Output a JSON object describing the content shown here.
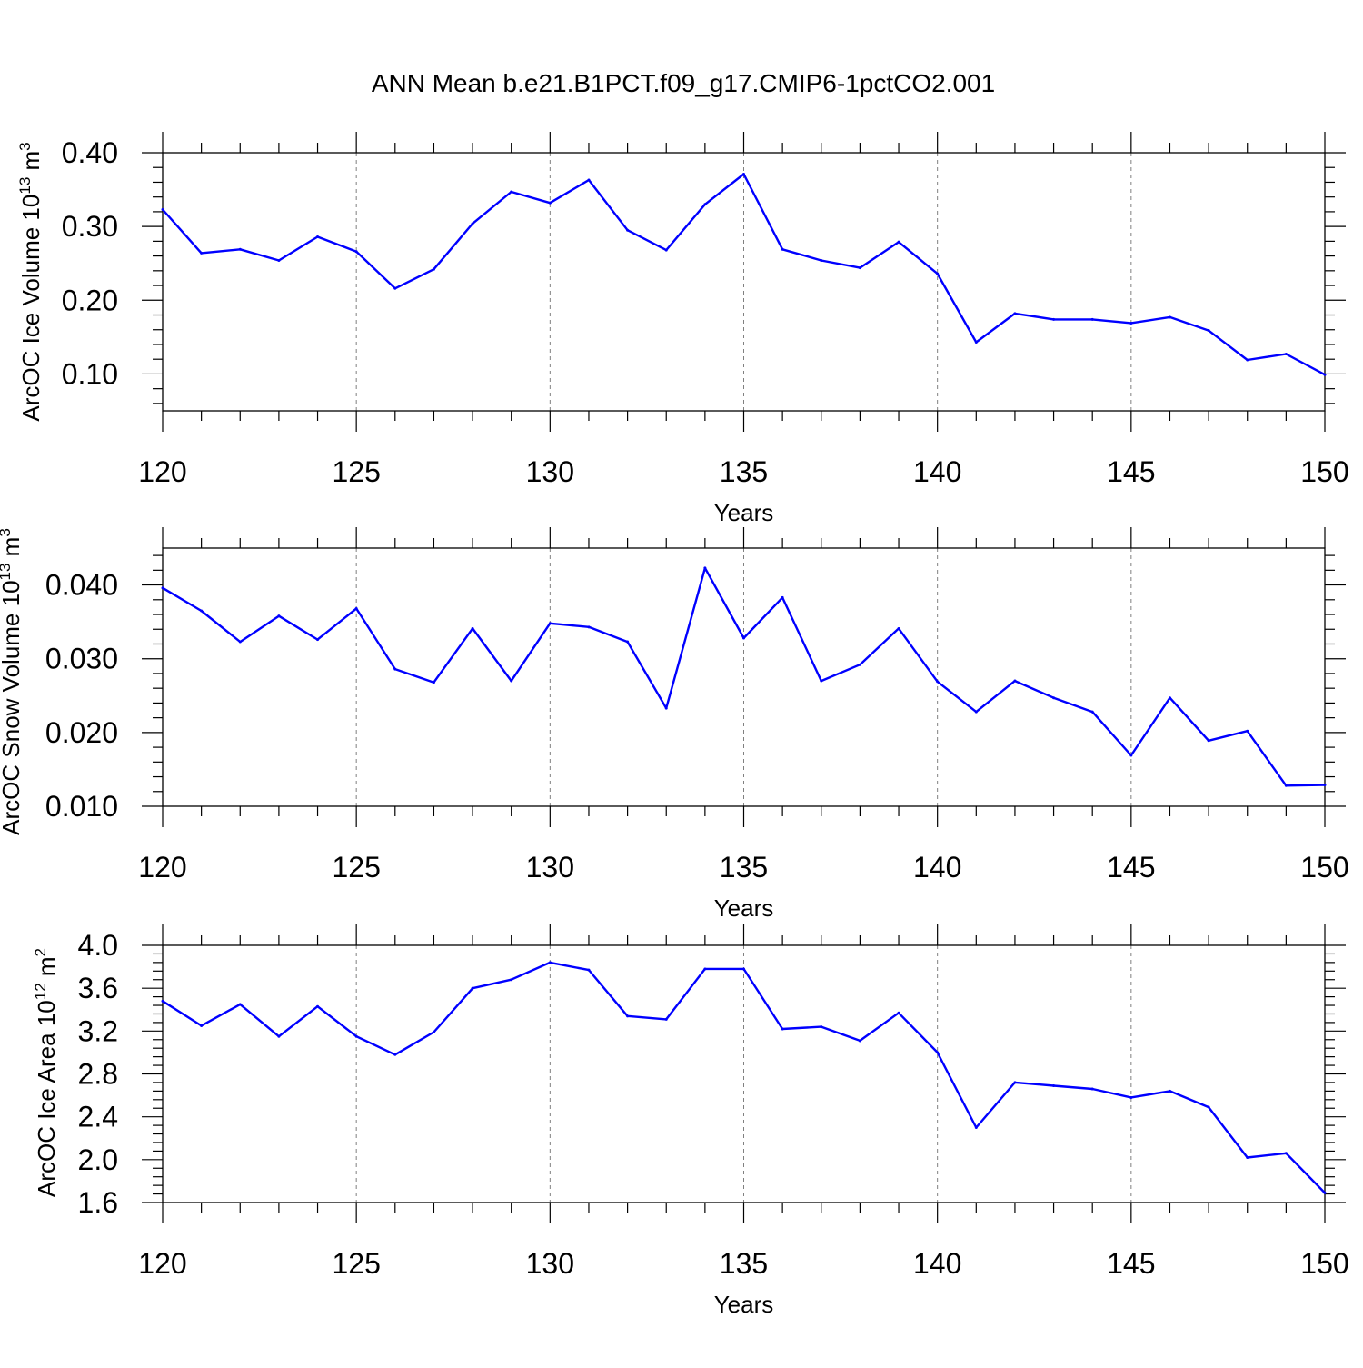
{
  "title": "ANN Mean b.e21.B1PCT.f09_g17.CMIP6-1pctCO2.001",
  "colors": {
    "line": "#0000ff",
    "axis": "#000000",
    "grid": "#808080"
  },
  "chart_data": [
    {
      "type": "line",
      "ylabel_main": "ArcOC Ice Volume 10",
      "ylabel_exp": "13",
      "ylabel_unit": " m",
      "ylabel_unit_exp": "3",
      "xlabel": "Years",
      "xlim": [
        120,
        150
      ],
      "ylim": [
        0.05,
        0.4
      ],
      "xticks": [
        120,
        125,
        130,
        135,
        140,
        145,
        150
      ],
      "xtick_labels": [
        "120",
        "125",
        "130",
        "135",
        "140",
        "145",
        "150"
      ],
      "yticks": [
        0.1,
        0.2,
        0.3,
        0.4
      ],
      "ytick_labels": [
        "0.10",
        "0.20",
        "0.30",
        "0.40"
      ],
      "x": [
        120,
        121,
        122,
        123,
        124,
        125,
        126,
        127,
        128,
        129,
        130,
        131,
        132,
        133,
        134,
        135,
        136,
        137,
        138,
        139,
        140,
        141,
        142,
        143,
        144,
        145,
        146,
        147,
        148,
        149,
        150
      ],
      "values": [
        0.323,
        0.264,
        0.269,
        0.254,
        0.286,
        0.266,
        0.216,
        0.242,
        0.304,
        0.347,
        0.332,
        0.363,
        0.295,
        0.268,
        0.33,
        0.371,
        0.269,
        0.254,
        0.244,
        0.279,
        0.236,
        0.143,
        0.182,
        0.174,
        0.174,
        0.169,
        0.177,
        0.159,
        0.119,
        0.127,
        0.099
      ]
    },
    {
      "type": "line",
      "ylabel_main": "ArcOC Snow Volume 10",
      "ylabel_exp": "13",
      "ylabel_unit": " m",
      "ylabel_unit_exp": "3",
      "xlabel": "Years",
      "xlim": [
        120,
        150
      ],
      "ylim": [
        0.01,
        0.045
      ],
      "xticks": [
        120,
        125,
        130,
        135,
        140,
        145,
        150
      ],
      "xtick_labels": [
        "120",
        "125",
        "130",
        "135",
        "140",
        "145",
        "150"
      ],
      "yticks": [
        0.01,
        0.02,
        0.03,
        0.04
      ],
      "ytick_labels": [
        "0.010",
        "0.020",
        "0.030",
        "0.040"
      ],
      "x": [
        120,
        121,
        122,
        123,
        124,
        125,
        126,
        127,
        128,
        129,
        130,
        131,
        132,
        133,
        134,
        135,
        136,
        137,
        138,
        139,
        140,
        141,
        142,
        143,
        144,
        145,
        146,
        147,
        148,
        149,
        150
      ],
      "values": [
        0.0396,
        0.0365,
        0.0323,
        0.0358,
        0.0326,
        0.0368,
        0.0286,
        0.0268,
        0.0341,
        0.027,
        0.0348,
        0.0343,
        0.0323,
        0.0233,
        0.0423,
        0.0328,
        0.0383,
        0.027,
        0.0292,
        0.0341,
        0.0269,
        0.0228,
        0.027,
        0.0247,
        0.0228,
        0.0169,
        0.0247,
        0.0189,
        0.0202,
        0.0128,
        0.0129
      ]
    },
    {
      "type": "line",
      "ylabel_main": "ArcOC Ice Area 10",
      "ylabel_exp": "12",
      "ylabel_unit": " m",
      "ylabel_unit_exp": "2",
      "xlabel": "Years",
      "xlim": [
        120,
        150
      ],
      "ylim": [
        1.6,
        4.0
      ],
      "xticks": [
        120,
        125,
        130,
        135,
        140,
        145,
        150
      ],
      "xtick_labels": [
        "120",
        "125",
        "130",
        "135",
        "140",
        "145",
        "150"
      ],
      "yticks": [
        1.6,
        2.0,
        2.4,
        2.8,
        3.2,
        3.6,
        4.0
      ],
      "ytick_labels": [
        "1.6",
        "2.0",
        "2.4",
        "2.8",
        "3.2",
        "3.6",
        "4.0"
      ],
      "x": [
        120,
        121,
        122,
        123,
        124,
        125,
        126,
        127,
        128,
        129,
        130,
        131,
        132,
        133,
        134,
        135,
        136,
        137,
        138,
        139,
        140,
        141,
        142,
        143,
        144,
        145,
        146,
        147,
        148,
        149,
        150
      ],
      "values": [
        3.48,
        3.25,
        3.45,
        3.15,
        3.43,
        3.15,
        2.98,
        3.19,
        3.6,
        3.68,
        3.84,
        3.77,
        3.34,
        3.31,
        3.78,
        3.78,
        3.22,
        3.24,
        3.11,
        3.37,
        3.0,
        2.3,
        2.72,
        2.69,
        2.66,
        2.58,
        2.64,
        2.49,
        2.02,
        2.06,
        1.69
      ]
    }
  ]
}
